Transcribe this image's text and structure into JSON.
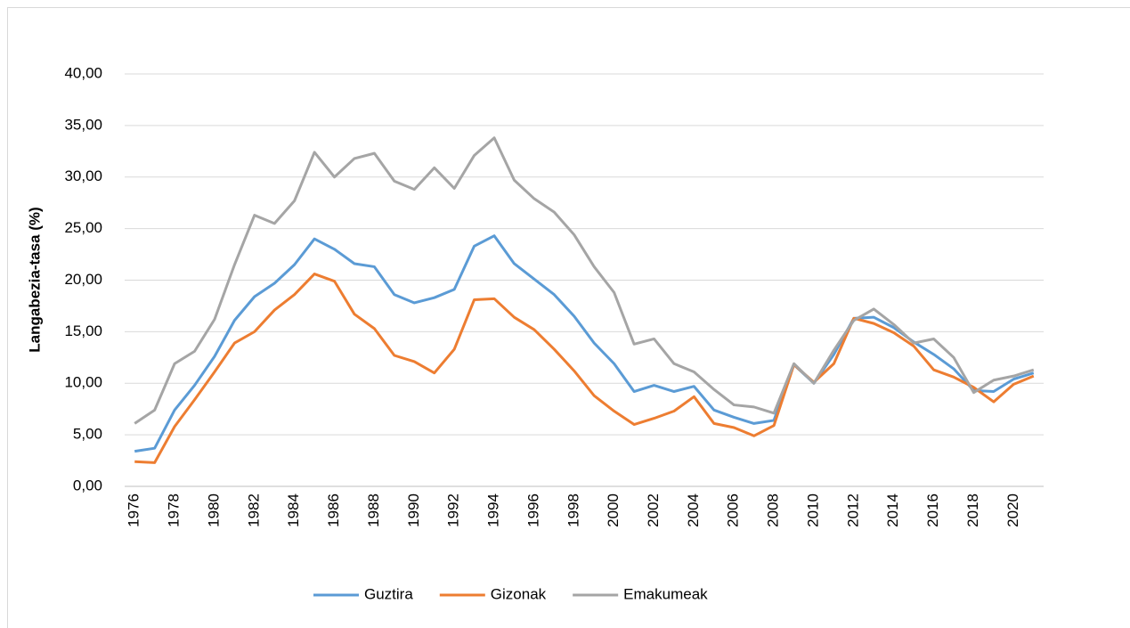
{
  "chart_data": {
    "type": "line",
    "y_label": "Langabezia-tasa (%)",
    "categories": [
      "1976",
      null,
      "1978",
      null,
      "1980",
      null,
      "1982",
      null,
      "1984",
      null,
      "1986",
      null,
      "1988",
      null,
      "1990",
      null,
      "1992",
      null,
      "1994",
      null,
      "1996",
      null,
      "1998",
      null,
      "2000",
      null,
      "2002",
      null,
      "2004",
      null,
      "2006",
      null,
      "2008",
      null,
      "2010",
      null,
      "2012",
      null,
      "2014",
      null,
      "2016",
      null,
      "2018",
      null,
      "2020",
      null
    ],
    "series": [
      {
        "name": "Guztira",
        "color": "#5b9bd5",
        "values": [
          3.4,
          3.7,
          7.4,
          9.8,
          12.6,
          16.1,
          18.4,
          19.7,
          21.5,
          24.0,
          23.0,
          21.6,
          21.3,
          18.6,
          17.8,
          18.3,
          19.1,
          23.3,
          24.3,
          21.6,
          20.1,
          18.6,
          16.5,
          13.9,
          11.9,
          9.2,
          9.8,
          9.2,
          9.7,
          7.4,
          6.7,
          6.1,
          6.4,
          11.8,
          10.0,
          12.8,
          16.3,
          16.4,
          15.4,
          14.0,
          12.8,
          11.4,
          9.3,
          9.2,
          10.4,
          11.0
        ]
      },
      {
        "name": "Gizonak",
        "color": "#ed7d31",
        "values": [
          2.4,
          2.3,
          5.8,
          8.4,
          11.1,
          13.9,
          15.0,
          17.1,
          18.6,
          20.6,
          19.9,
          16.7,
          15.3,
          12.7,
          12.1,
          11.0,
          13.3,
          18.1,
          18.2,
          16.4,
          15.2,
          13.3,
          11.2,
          8.8,
          7.3,
          6.0,
          6.6,
          7.3,
          8.7,
          6.1,
          5.7,
          4.9,
          5.9,
          11.8,
          10.1,
          11.9,
          16.3,
          15.8,
          14.9,
          13.6,
          11.3,
          10.6,
          9.6,
          8.2,
          9.9,
          10.7
        ]
      },
      {
        "name": "Emakumeak",
        "color": "#a5a5a5",
        "values": [
          6.1,
          7.4,
          11.9,
          13.1,
          16.2,
          21.5,
          26.3,
          25.5,
          27.7,
          32.4,
          30.0,
          31.8,
          32.3,
          29.6,
          28.8,
          30.9,
          28.9,
          32.1,
          33.8,
          29.7,
          27.9,
          26.6,
          24.4,
          21.3,
          18.8,
          13.8,
          14.3,
          11.9,
          11.1,
          9.4,
          7.9,
          7.7,
          7.1,
          11.9,
          10.0,
          13.2,
          16.1,
          17.2,
          15.7,
          13.9,
          14.3,
          12.5,
          9.1,
          10.3,
          10.7,
          11.3
        ]
      }
    ],
    "ylim": [
      0,
      40
    ],
    "yticks": [
      {
        "value": 0,
        "label": "0,00"
      },
      {
        "value": 5,
        "label": "5,00"
      },
      {
        "value": 10,
        "label": "10,00"
      },
      {
        "value": 15,
        "label": "15,00"
      },
      {
        "value": 20,
        "label": "20,00"
      },
      {
        "value": 25,
        "label": "25,00"
      },
      {
        "value": 30,
        "label": "30,00"
      },
      {
        "value": 35,
        "label": "35,00"
      },
      {
        "value": 40,
        "label": "40,00"
      }
    ],
    "grid": true,
    "legend": "bottom"
  }
}
